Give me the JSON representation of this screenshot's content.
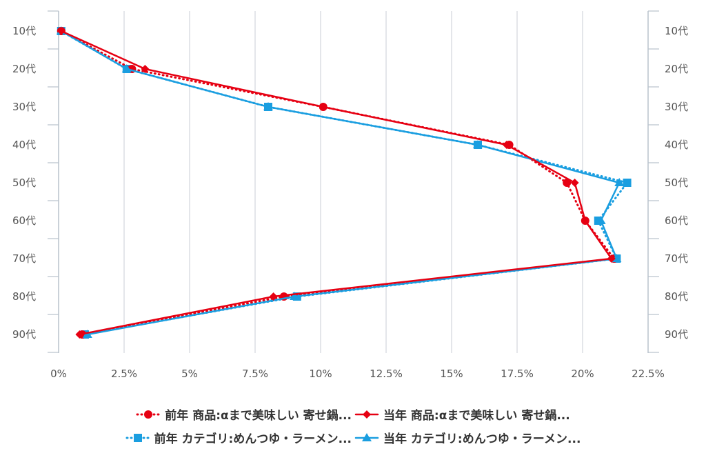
{
  "chart_data": {
    "type": "line",
    "orientation": "horizontal",
    "categories": [
      "10代",
      "20代",
      "30代",
      "40代",
      "50代",
      "60代",
      "70代",
      "80代",
      "90代"
    ],
    "xlim": [
      0,
      22.5
    ],
    "xticks": [
      "0%",
      "2.5%",
      "5%",
      "7.5%",
      "10%",
      "12.5%",
      "15%",
      "17.5%",
      "20%",
      "22.5%"
    ],
    "xtick_values": [
      0,
      2.5,
      5,
      7.5,
      10,
      12.5,
      15,
      17.5,
      20,
      22.5
    ],
    "grid": "vertical",
    "legend_position": "bottom",
    "series": [
      {
        "name": "前年 商品:αまで美味しい 寄せ鍋...",
        "color": "#e60012",
        "marker": "circle",
        "line": "dotted",
        "values": [
          0.1,
          2.8,
          10.1,
          17.2,
          19.4,
          20.1,
          21.2,
          8.6,
          0.9
        ]
      },
      {
        "name": "当年 商品:αまで美味しい 寄せ鍋...",
        "color": "#e60012",
        "marker": "diamond",
        "line": "solid",
        "values": [
          0.1,
          3.3,
          10.1,
          17.1,
          19.7,
          20.1,
          21.1,
          8.2,
          0.8
        ]
      },
      {
        "name": "前年 カテゴリ:めんつゆ・ラーメン...",
        "color": "#1a9ee0",
        "marker": "square",
        "line": "dotted",
        "values": [
          0.1,
          2.6,
          8.0,
          16.0,
          21.7,
          20.6,
          21.3,
          9.1,
          1.0
        ]
      },
      {
        "name": "当年 カテゴリ:めんつゆ・ラーメン...",
        "color": "#1a9ee0",
        "marker": "triangle",
        "line": "solid",
        "values": [
          0.1,
          2.6,
          8.0,
          16.0,
          21.4,
          20.7,
          21.3,
          9.0,
          1.1
        ]
      }
    ]
  }
}
